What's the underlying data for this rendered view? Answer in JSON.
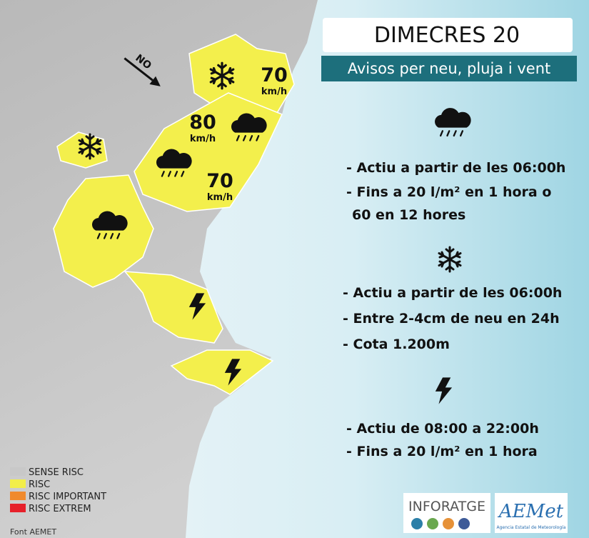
{
  "header": {
    "title": "DIMECRES 20",
    "subtitle": "Avisos per neu, pluja i vent"
  },
  "map": {
    "direction": "NO",
    "wind_labels": [
      {
        "value": "70",
        "unit": "km/h"
      },
      {
        "value": "80",
        "unit": "km/h"
      },
      {
        "value": "70",
        "unit": "km/h"
      }
    ]
  },
  "warnings": [
    {
      "lines": [
        "- Actiu a partir de les 06:00h",
        "- Fins a 20 l/m² en 1 hora o",
        "60 en 12 hores"
      ]
    },
    {
      "lines": [
        "- Actiu a partir de les 06:00h",
        "- Entre 2-4cm de neu en 24h",
        "- Cota 1.200m"
      ]
    },
    {
      "lines": [
        "- Actiu de 08:00 a 22:00h",
        "- Fins a 20 l/m² en 1 hora"
      ]
    }
  ],
  "legend": [
    {
      "label": "SENSE RISC",
      "color": "#c8c8c8"
    },
    {
      "label": "RISC",
      "color": "#f2ee4a"
    },
    {
      "label": "RISC IMPORTANT",
      "color": "#f08a2c"
    },
    {
      "label": "RISC EXTREM",
      "color": "#e6202a"
    }
  ],
  "source": "Font AEMET",
  "logos": {
    "inforatge": "INFORATGE",
    "aemet": "AEMet",
    "aemet_caption": "Agencia Estatal de Meteorología"
  }
}
